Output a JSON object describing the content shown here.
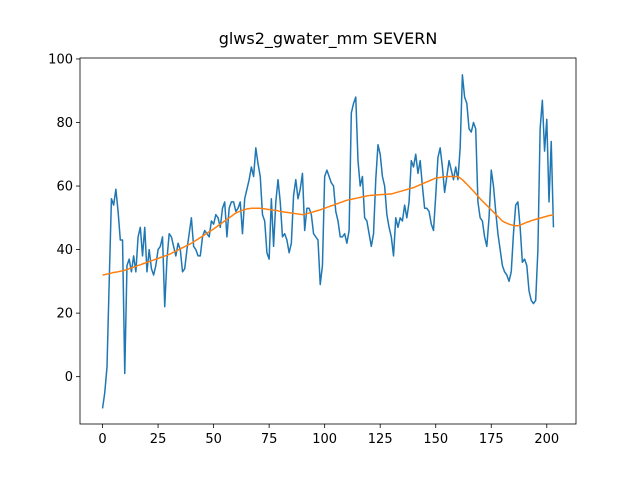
{
  "chart_data": {
    "type": "line",
    "title": "glws2_gwater_mm SEVERN",
    "x": [
      0,
      1,
      2,
      3,
      4,
      5,
      6,
      7,
      8,
      9,
      10,
      11,
      12,
      13,
      14,
      15,
      16,
      17,
      18,
      19,
      20,
      21,
      22,
      23,
      24,
      25,
      26,
      27,
      28,
      29,
      30,
      31,
      32,
      33,
      34,
      35,
      36,
      37,
      38,
      39,
      40,
      41,
      42,
      43,
      44,
      45,
      46,
      47,
      48,
      49,
      50,
      51,
      52,
      53,
      54,
      55,
      56,
      57,
      58,
      59,
      60,
      61,
      62,
      63,
      64,
      65,
      66,
      67,
      68,
      69,
      70,
      71,
      72,
      73,
      74,
      75,
      76,
      77,
      78,
      79,
      80,
      81,
      82,
      83,
      84,
      85,
      86,
      87,
      88,
      89,
      90,
      91,
      92,
      93,
      94,
      95,
      96,
      97,
      98,
      99,
      100,
      101,
      102,
      103,
      104,
      105,
      106,
      107,
      108,
      109,
      110,
      111,
      112,
      113,
      114,
      115,
      116,
      117,
      118,
      119,
      120,
      121,
      122,
      123,
      124,
      125,
      126,
      127,
      128,
      129,
      130,
      131,
      132,
      133,
      134,
      135,
      136,
      137,
      138,
      139,
      140,
      141,
      142,
      143,
      144,
      145,
      146,
      147,
      148,
      149,
      150,
      151,
      152,
      153,
      154,
      155,
      156,
      157,
      158,
      159,
      160,
      161,
      162,
      163,
      164,
      165,
      166,
      167,
      168,
      169,
      170,
      171,
      172,
      173,
      174,
      175,
      176,
      177,
      178,
      179,
      180,
      181,
      182,
      183,
      184,
      185,
      186,
      187,
      188,
      189,
      190,
      191,
      192,
      193,
      194,
      195,
      196,
      197,
      198,
      199,
      200,
      201,
      202,
      203
    ],
    "series": [
      {
        "color": "#1f77b4",
        "values": [
          -10,
          -5,
          3,
          30,
          56,
          54,
          59,
          52,
          43,
          43,
          1,
          35,
          37,
          33,
          38,
          33,
          44,
          47,
          38,
          47,
          33,
          40,
          34,
          32,
          35,
          40,
          41,
          44,
          22,
          37,
          45,
          44,
          41,
          38,
          42,
          40,
          33,
          34,
          40,
          45,
          50,
          41,
          40,
          38,
          38,
          44,
          46,
          45,
          44,
          49,
          48,
          51,
          50,
          47,
          53,
          55,
          44,
          53,
          55,
          55,
          52,
          53,
          55,
          45,
          56,
          59,
          62,
          66,
          63,
          72,
          67,
          63,
          51,
          49,
          39,
          37,
          56,
          41,
          55,
          62,
          55,
          44,
          45,
          43,
          39,
          42,
          57,
          62,
          56,
          59,
          64,
          46,
          53,
          53,
          51,
          45,
          44,
          43,
          29,
          35,
          63,
          65,
          63,
          61,
          60,
          52,
          49,
          44,
          44,
          45,
          42,
          46,
          83,
          86,
          88,
          68,
          60,
          63,
          50,
          49,
          45,
          41,
          45,
          62,
          73,
          70,
          63,
          60,
          51,
          47,
          44,
          38,
          50,
          47,
          50,
          49,
          54,
          50,
          55,
          68,
          66,
          70,
          64,
          68,
          60,
          53,
          53,
          52,
          48,
          46,
          57,
          69,
          72,
          66,
          58,
          63,
          68,
          65,
          62,
          66,
          62,
          72,
          95,
          88,
          86,
          78,
          77,
          80,
          78,
          55,
          50,
          49,
          44,
          41,
          50,
          65,
          60,
          52,
          45,
          40,
          35,
          33,
          32,
          30,
          33,
          45,
          54,
          55,
          47,
          36,
          37,
          35,
          27,
          24,
          23,
          24,
          40,
          78,
          87,
          71,
          81,
          55,
          74,
          47
        ]
      },
      {
        "color": "#ff7f0e",
        "values": [
          32,
          32.1,
          32.3,
          32.4,
          32.6,
          32.8,
          32.9,
          33.0,
          33.2,
          33.3,
          33.5,
          33.7,
          34.0,
          34.2,
          34.5,
          34.7,
          35.0,
          35.2,
          35.5,
          35.7,
          36.0,
          36.2,
          36.5,
          36.7,
          37.0,
          37.2,
          37.5,
          37.7,
          38.0,
          38.2,
          38.5,
          38.8,
          39.2,
          39.5,
          39.9,
          40.2,
          40.6,
          40.9,
          41.3,
          41.6,
          42.0,
          42.4,
          42.9,
          43.3,
          43.8,
          44.2,
          44.7,
          45.1,
          45.6,
          46.0,
          46.5,
          47.0,
          47.5,
          48.0,
          48.5,
          49.0,
          49.5,
          50.0,
          50.5,
          51.0,
          51.5,
          51.8,
          52.1,
          52.4,
          52.6,
          52.8,
          52.9,
          53.0,
          53.0,
          53.0,
          53.0,
          53.0,
          52.9,
          52.8,
          52.7,
          52.6,
          52.5,
          52.4,
          52.3,
          52.2,
          52.0,
          51.9,
          51.8,
          51.7,
          51.6,
          51.5,
          51.4,
          51.3,
          51.2,
          51.1,
          51.0,
          51.1,
          51.3,
          51.5,
          51.7,
          51.9,
          52.1,
          52.3,
          52.5,
          52.8,
          53.0,
          53.3,
          53.5,
          53.8,
          54.0,
          54.3,
          54.5,
          54.8,
          55.0,
          55.3,
          55.5,
          55.7,
          55.8,
          56.0,
          56.1,
          56.3,
          56.4,
          56.6,
          56.7,
          56.9,
          57.0,
          57.1,
          57.1,
          57.2,
          57.2,
          57.3,
          57.3,
          57.4,
          57.4,
          57.5,
          57.5,
          57.7,
          57.9,
          58.1,
          58.3,
          58.5,
          58.7,
          58.9,
          59.1,
          59.3,
          59.5,
          59.8,
          60.1,
          60.4,
          60.7,
          61.0,
          61.3,
          61.6,
          61.9,
          62.2,
          62.5,
          62.6,
          62.7,
          62.8,
          62.9,
          63.0,
          63.0,
          63.0,
          63.0,
          63.0,
          63.0,
          62.5,
          62.0,
          61.3,
          60.6,
          59.9,
          59.1,
          58.4,
          57.6,
          56.8,
          56.0,
          55.3,
          54.6,
          53.9,
          53.2,
          52.5,
          51.8,
          51.1,
          50.4,
          49.7,
          49.0,
          48.6,
          48.3,
          48.0,
          47.8,
          47.6,
          47.5,
          47.5,
          47.7,
          48.0,
          48.3,
          48.6,
          48.8,
          49.1,
          49.3,
          49.5,
          49.7,
          49.9,
          50.1,
          50.3,
          50.5,
          50.7,
          50.8,
          51.0
        ]
      }
    ],
    "xlim": [
      -10.15,
      213.15
    ],
    "ylim": [
      -14.9,
      100.3
    ],
    "xticks": [
      0,
      25,
      50,
      75,
      100,
      125,
      150,
      175,
      200
    ],
    "yticks": [
      0,
      20,
      40,
      60,
      80,
      100
    ]
  }
}
